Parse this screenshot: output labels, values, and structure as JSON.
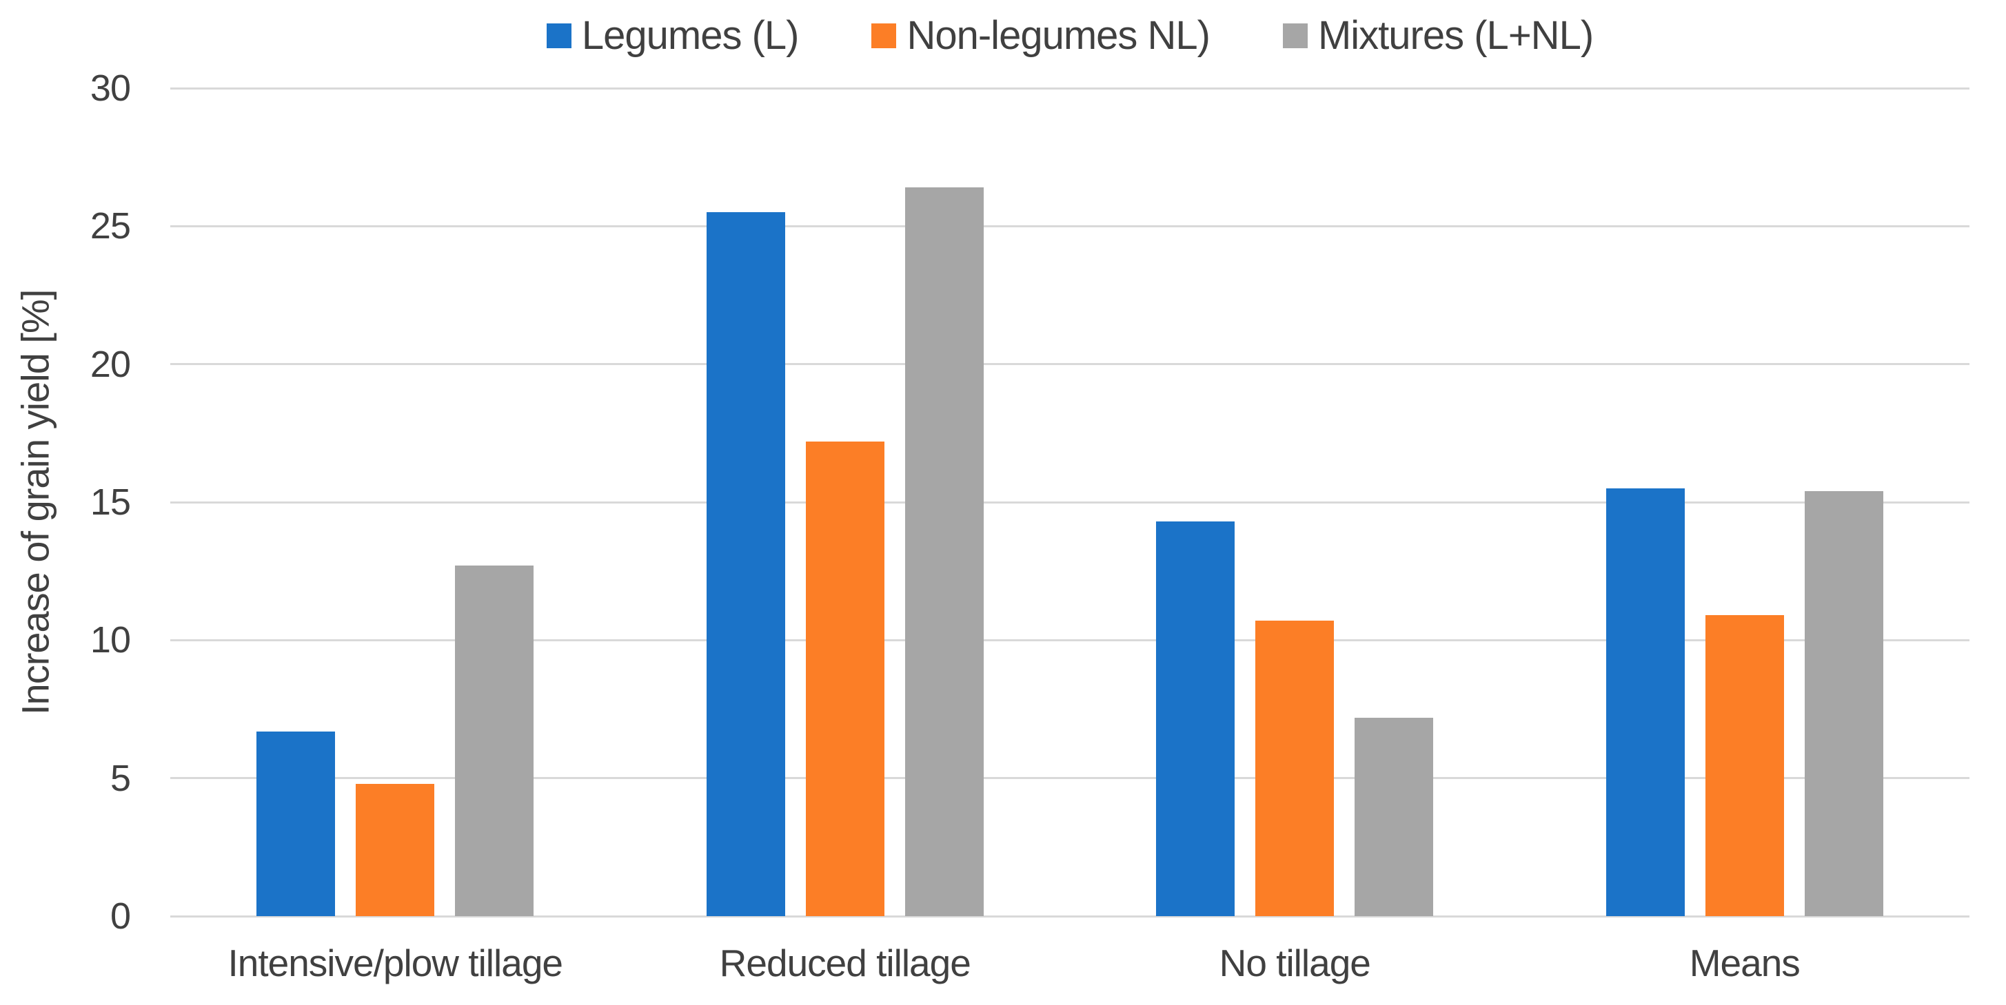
{
  "chart_data": {
    "type": "bar",
    "title": "",
    "xlabel": "",
    "ylabel": "Increase of grain yield [%]",
    "ylim": [
      0,
      30
    ],
    "yticks": [
      0,
      5,
      10,
      15,
      20,
      25,
      30
    ],
    "grid": true,
    "legend_position": "top-center",
    "categories": [
      "Intensive/plow tillage",
      "Reduced tillage",
      "No tillage",
      "Means"
    ],
    "series": [
      {
        "name": "Legumes (L)",
        "color": "#1B73C8",
        "values": [
          6.7,
          25.5,
          14.3,
          15.5
        ]
      },
      {
        "name": "Non-legumes NL)",
        "color": "#FC7E26",
        "values": [
          4.8,
          17.2,
          10.7,
          10.9
        ]
      },
      {
        "name": "Mixtures (L+NL)",
        "color": "#A6A6A6",
        "values": [
          12.7,
          26.4,
          7.2,
          15.4
        ]
      }
    ]
  },
  "colors": {
    "text": "#404040",
    "gridline": "#D9D9D9",
    "background": "#FFFFFF"
  }
}
